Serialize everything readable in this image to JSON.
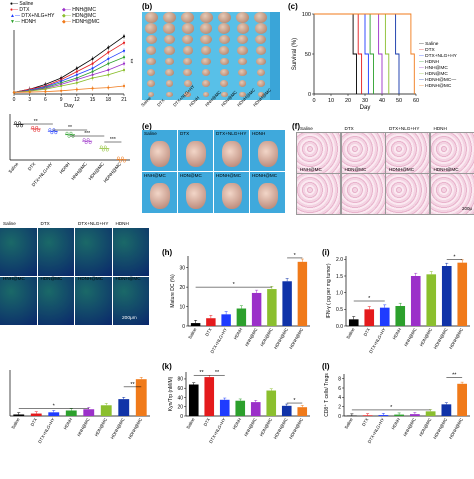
{
  "colors": {
    "saline": "#000000",
    "dtx": "#e41a1c",
    "dtxnlghy": "#1f3cff",
    "hdnh": "#2ca02c",
    "hnhmc": "#9b30c9",
    "hdnmc": "#8bbf2e",
    "hdnhmc_blue": "#1033a8",
    "hdnhmc": "#f07a1a",
    "sig": "#000000"
  },
  "panels": {
    "b": "(b)",
    "c": "(c)",
    "e": "(e)",
    "f": "(f)",
    "h": "(h)",
    "i": "(i)",
    "k": "(k)",
    "l": "(l)"
  },
  "legend_a": [
    "Saline",
    "DTX",
    "DTX+NLG+HY",
    "HDNH",
    "HNH@MC",
    "HDN@MC",
    "HDNH@MC"
  ],
  "legend_c": [
    "Saline",
    "DTX",
    "DTX+NLG+HY",
    "HDNH",
    "HNH@MC",
    "HDN@MC",
    "HDNH@MC—",
    "HDNH@MC"
  ],
  "photo_b_labels": [
    "Saline",
    "DTX",
    "DTX+NLG+HY",
    "HDNH",
    "HNH@MC",
    "HDN@MC",
    "HDNH@MC",
    "HDNH@MC"
  ],
  "photo_e_labels": [
    "Saline",
    "DTX",
    "DTX+NLG+HY",
    "HDNH",
    "HNH@MC",
    "HDN@MC",
    "HDNH@MC",
    "HDNH@MC"
  ],
  "photo_f_labels": [
    "Saline",
    "DTX",
    "DTX+NLG+HY",
    "HDNH",
    "HNH@MC",
    "HDN@MC",
    "HDNH@MC",
    "HDNH@MC"
  ],
  "photo_g_labels": [
    "Saline",
    "DTX",
    "DTX+NLG+HY",
    "HDNH",
    "HNH@MC",
    "HDN@MC",
    "HDNH@MC",
    "HDNH@MC"
  ],
  "scale_g": "200μm",
  "scale_f": "200μ",
  "sig": {
    "a_sig": "**",
    "d1": "**",
    "d2": "**",
    "d3": "***",
    "d4": "***",
    "h1": "*",
    "h2": "*",
    "i1": "*",
    "i2": "*",
    "j1": "*",
    "j2": "**",
    "k1": "**",
    "k2": "**",
    "k3": "*",
    "l1": "*",
    "l2": "**"
  },
  "chart_data": [
    {
      "id": "a",
      "type": "line",
      "xlabel": "Day",
      "x": [
        0,
        3,
        6,
        9,
        12,
        15,
        18,
        21
      ],
      "xticks": [
        0,
        3,
        6,
        9,
        12,
        15,
        18,
        21
      ],
      "series": [
        {
          "name": "Saline",
          "values": [
            0.1,
            0.3,
            0.6,
            1.0,
            1.6,
            2.2,
            2.9,
            3.6
          ]
        },
        {
          "name": "DTX",
          "values": [
            0.1,
            0.3,
            0.5,
            0.9,
            1.4,
            1.9,
            2.6,
            3.2
          ]
        },
        {
          "name": "DTX+NLG+HY",
          "values": [
            0.1,
            0.25,
            0.45,
            0.8,
            1.2,
            1.6,
            2.2,
            2.7
          ]
        },
        {
          "name": "HDNH",
          "values": [
            0.1,
            0.22,
            0.4,
            0.7,
            1.0,
            1.4,
            1.9,
            2.3
          ]
        },
        {
          "name": "HNH@MC",
          "values": [
            0.1,
            0.2,
            0.35,
            0.6,
            0.9,
            1.2,
            1.5,
            1.9
          ]
        },
        {
          "name": "HDN@MC",
          "values": [
            0.1,
            0.18,
            0.3,
            0.5,
            0.7,
            1.0,
            1.2,
            1.5
          ]
        },
        {
          "name": "HDNH@MC",
          "values": [
            0.1,
            0.12,
            0.15,
            0.2,
            0.28,
            0.35,
            0.4,
            0.5
          ]
        }
      ],
      "ylim": [
        0,
        4
      ]
    },
    {
      "id": "c",
      "type": "line",
      "xlabel": "Day",
      "ylabel": "Survival (%)",
      "xticks": [
        0,
        10,
        20,
        30,
        40,
        50,
        60
      ],
      "yticks": [
        0,
        50,
        100
      ],
      "xlim": [
        0,
        60
      ],
      "ylim": [
        0,
        100
      ],
      "steps": [
        {
          "name": "Saline",
          "drop": 23
        },
        {
          "name": "DTX",
          "drop": 26
        },
        {
          "name": "DTX+NLG+HY",
          "drop": 30
        },
        {
          "name": "HDNH",
          "drop": 33
        },
        {
          "name": "HNH@MC",
          "drop": 38
        },
        {
          "name": "HDN@MC",
          "drop": 42
        },
        {
          "name": "HDNH@MC—",
          "drop": 48
        },
        {
          "name": "HDNH@MC",
          "drop": 57
        }
      ]
    },
    {
      "id": "d",
      "type": "scatter",
      "categories": [
        "Saline",
        "DTX",
        "DTX+NLG+HY",
        "HDNH",
        "HNH@MC",
        "HDN@MC",
        "HDNH@MC"
      ],
      "values": [
        1.55,
        1.35,
        1.25,
        1.1,
        0.82,
        0.5,
        0.02
      ],
      "ylim": [
        0,
        2
      ]
    },
    {
      "id": "h",
      "type": "bar",
      "ylabel": "Mature DC (%)",
      "categories": [
        "Saline",
        "DTX",
        "DTX+NLG+HY",
        "HDNH",
        "HNH@MC",
        "HDN@MC",
        "HDNH@MC",
        "HDNH@MC"
      ],
      "values": [
        1.5,
        4,
        6,
        9,
        17,
        19,
        23,
        33
      ],
      "yticks": [
        0,
        10,
        20,
        30
      ],
      "ylim": [
        0,
        36
      ]
    },
    {
      "id": "i",
      "type": "bar",
      "ylabel": "IFN-γ ( pg per mg tumor)",
      "categories": [
        "Saline",
        "DTX",
        "DTX+NLG+HY",
        "HDNH",
        "HNH@MC",
        "HDN@MC",
        "HDNH@MC",
        "HDNH@MC"
      ],
      "values": [
        0.2,
        0.5,
        0.55,
        0.6,
        1.5,
        1.55,
        1.8,
        1.9
      ],
      "yticks": [
        0.0,
        0.5,
        1.0,
        1.5,
        2.0
      ],
      "ylim": [
        0,
        2.1
      ]
    },
    {
      "id": "j",
      "type": "bar",
      "categories": [
        "Saline",
        "DTX",
        "DTX+NLG+HY",
        "HDNH",
        "HNH@MC",
        "HDN@MC",
        "HDNH@MC",
        "HDNH@MC"
      ],
      "values": [
        0.05,
        0.08,
        0.12,
        0.18,
        0.22,
        0.35,
        0.55,
        1.2
      ],
      "ylim": [
        0,
        1.5
      ]
    },
    {
      "id": "k",
      "type": "bar",
      "ylabel": "Kyn/Trp (nM/M)",
      "categories": [
        "Saline",
        "DTX",
        "DTX+NLG+HY",
        "HDNH",
        "HNH@MC",
        "HDN@MC",
        "HDNH@MC",
        "HDNH@MC"
      ],
      "values": [
        68,
        84,
        35,
        33,
        30,
        55,
        22,
        19
      ],
      "yticks": [
        0,
        20,
        40,
        60,
        80
      ],
      "ylim": [
        0,
        95
      ]
    },
    {
      "id": "l",
      "type": "bar",
      "ylabel": "CD8⁺ T cells/ Tregs",
      "categories": [
        "Saline",
        "DTX",
        "DTX+NLG+HY",
        "HDNH",
        "HNH@MC",
        "HDN@MC",
        "HDNH@MC",
        "HDNH@MC"
      ],
      "values": [
        0.1,
        0.15,
        0.2,
        0.3,
        0.4,
        1.0,
        2.5,
        6.9
      ],
      "yticks": [
        0,
        2,
        4,
        6,
        8
      ],
      "ylim": [
        0,
        9
      ]
    }
  ]
}
